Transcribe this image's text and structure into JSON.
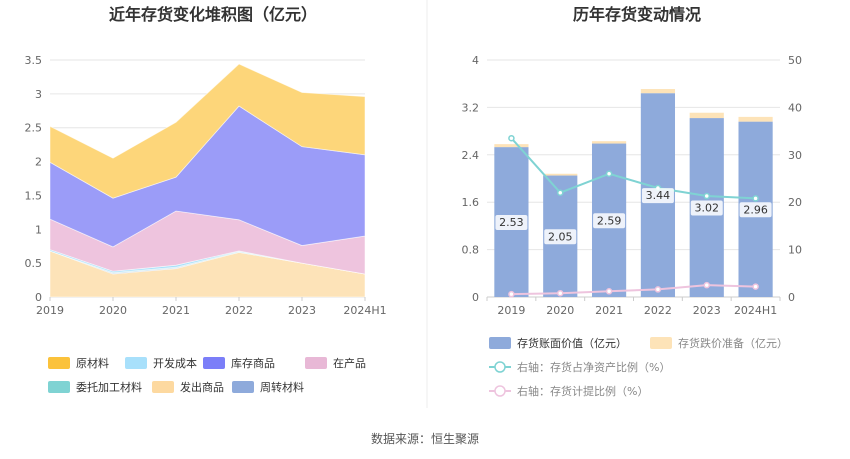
{
  "source_text": "数据来源：恒生聚源",
  "chart_data": [
    {
      "type": "area",
      "stacked": true,
      "title": "近年存货变化堆积图（亿元）",
      "categories": [
        "2019",
        "2020",
        "2021",
        "2022",
        "2023",
        "2024H1"
      ],
      "ylim": [
        0,
        3.5
      ],
      "yticks": [
        "0",
        "0.5",
        "1",
        "1.5",
        "2",
        "2.5",
        "3",
        "3.5"
      ],
      "yticks_values": [
        0,
        0.5,
        1,
        1.5,
        2,
        2.5,
        3,
        3.5
      ],
      "grid": true,
      "legend_position": "bottom",
      "series": [
        {
          "name": "发出商品",
          "color": "#fde3b8",
          "values": [
            0.68,
            0.34,
            0.42,
            0.66,
            0.5,
            0.34
          ]
        },
        {
          "name": "周转材料",
          "color": "#8eaadb",
          "values": [
            0.0,
            0.01,
            0.01,
            0.0,
            0.0,
            0.0
          ]
        },
        {
          "name": "委托加工材料",
          "color": "#7fd3d3",
          "values": [
            0.0,
            0.01,
            0.01,
            0.01,
            0.0,
            0.0
          ]
        },
        {
          "name": "开发成本",
          "color": "#a8e0fb",
          "values": [
            0.02,
            0.02,
            0.03,
            0.01,
            0.0,
            0.0
          ]
        },
        {
          "name": "在产品",
          "color": "#eec4de",
          "values": [
            0.45,
            0.36,
            0.8,
            0.46,
            0.26,
            0.56
          ]
        },
        {
          "name": "库存商品",
          "color": "#9b9cf8",
          "values": [
            0.84,
            0.72,
            0.5,
            1.68,
            1.46,
            1.2
          ]
        },
        {
          "name": "原材料",
          "color": "#fdd67a",
          "values": [
            0.53,
            0.59,
            0.81,
            0.62,
            0.8,
            0.86
          ]
        }
      ],
      "legend": [
        {
          "name": "原材料",
          "color": "#fbc23b"
        },
        {
          "name": "开发成本",
          "color": "#a8e0fb"
        },
        {
          "name": "库存商品",
          "color": "#7b7ef8"
        },
        {
          "name": "在产品",
          "color": "#e8b8d6"
        },
        {
          "name": "委托加工材料",
          "color": "#7fd3d3"
        },
        {
          "name": "发出商品",
          "color": "#fdd9a0"
        },
        {
          "name": "周转材料",
          "color": "#8eaadb"
        }
      ]
    },
    {
      "type": "bar",
      "title": "历年存货变动情况",
      "categories": [
        "2019",
        "2020",
        "2021",
        "2022",
        "2023",
        "2024H1"
      ],
      "ylim": [
        0,
        4
      ],
      "yticks": [
        "0",
        "0.8",
        "1.6",
        "2.4",
        "3.2",
        "4"
      ],
      "yticks_values": [
        0,
        0.8,
        1.6,
        2.4,
        3.2,
        4
      ],
      "y2lim": [
        0,
        50
      ],
      "y2ticks": [
        "0",
        "10",
        "20",
        "30",
        "40",
        "50"
      ],
      "y2ticks_values": [
        0,
        10,
        20,
        30,
        40,
        50
      ],
      "grid": true,
      "legend_position": "bottom",
      "bar_series": [
        {
          "name": "存货账面价值（亿元）",
          "color": "#8eaadb",
          "values": [
            2.53,
            2.05,
            2.59,
            3.44,
            3.02,
            2.96
          ],
          "labels": [
            "2.53",
            "2.05",
            "2.59",
            "3.44",
            "3.02",
            "2.96"
          ]
        },
        {
          "name": "存货跌价准备（亿元）",
          "color": "#fde3b8",
          "values": [
            0.05,
            0.03,
            0.04,
            0.07,
            0.09,
            0.08
          ]
        }
      ],
      "line_series": [
        {
          "name": "右轴：存货占净资产比例（%）",
          "color": "#7fd3d3",
          "values": [
            33.5,
            22.0,
            26.0,
            23.0,
            21.3,
            20.8
          ]
        },
        {
          "name": "右轴：存货计提比例（%）",
          "color": "#eec4de",
          "values": [
            0.6,
            0.8,
            1.2,
            1.6,
            2.5,
            2.2
          ]
        }
      ]
    }
  ]
}
